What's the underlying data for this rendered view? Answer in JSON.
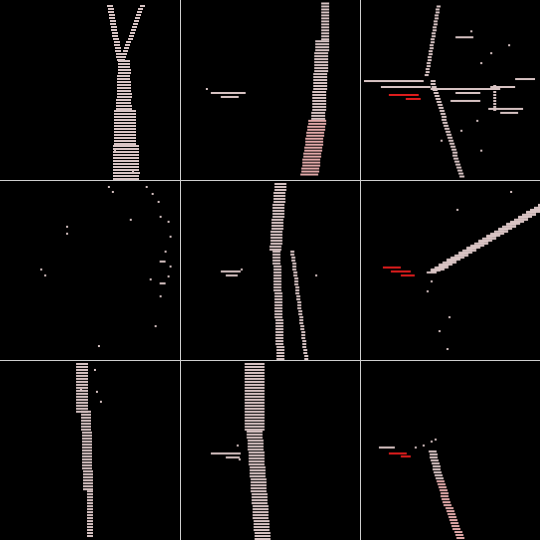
{
  "grid": {
    "rows": 3,
    "cols": 3
  },
  "colors": {
    "background": "#000000",
    "divider": "#cfcfcf",
    "voxel": "#d9c4c4",
    "voxel_pink": "#e2a8a8",
    "highlight": "#e11d1d"
  },
  "panels": [
    {
      "id": "p1",
      "icon": "voxel-tree-trunk-forked"
    },
    {
      "id": "p2",
      "icon": "voxel-trunk-with-branch"
    },
    {
      "id": "p3",
      "icon": "voxel-branching-canopy-red-highlight"
    },
    {
      "id": "p4",
      "icon": "voxel-sparse-scatter"
    },
    {
      "id": "p5",
      "icon": "voxel-trunk-split-lower"
    },
    {
      "id": "p6",
      "icon": "voxel-diagonal-branch-red-highlight"
    },
    {
      "id": "p7",
      "icon": "voxel-thin-trunk"
    },
    {
      "id": "p8",
      "icon": "voxel-trunk-side-twig"
    },
    {
      "id": "p9",
      "icon": "voxel-curved-trunk-red-highlight"
    }
  ]
}
